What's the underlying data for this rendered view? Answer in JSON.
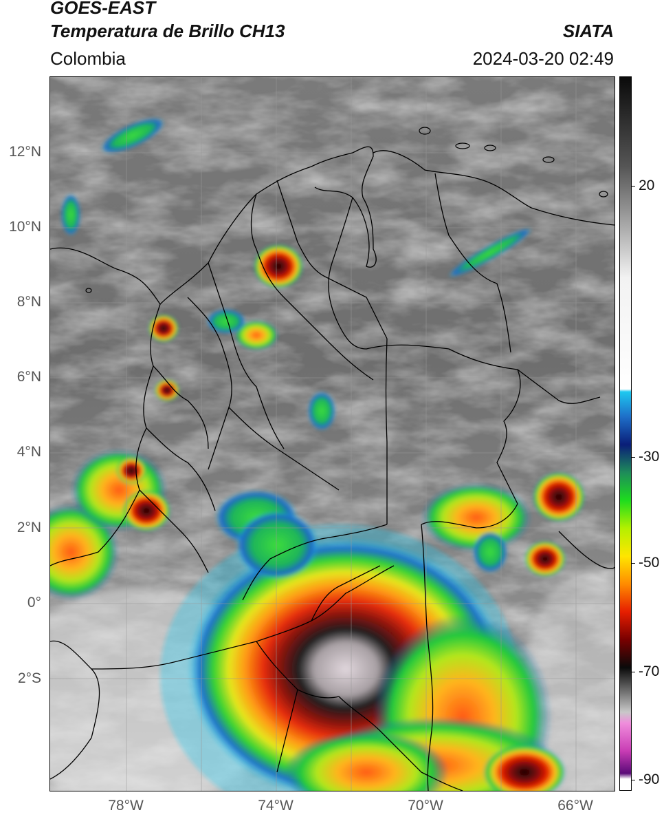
{
  "header": {
    "line1": "GOES-EAST",
    "line2": "Temperatura de Brillo CH13",
    "line3": "Colombia",
    "source": "SIATA",
    "datetime": "2024-03-20 02:49"
  },
  "map": {
    "lat_labels": [
      "12°N",
      "10°N",
      "8°N",
      "6°N",
      "4°N",
      "2°N",
      "0°",
      "2°S"
    ],
    "lon_labels": [
      "78°W",
      "74°W",
      "70°W",
      "66°W"
    ],
    "lon_range": [
      -80,
      -65
    ],
    "lat_range": [
      -5,
      14
    ]
  },
  "colorbar": {
    "labels": [
      "20",
      "-30",
      "-50",
      "-70",
      "-90"
    ],
    "range": [
      -92,
      36
    ],
    "gradient": [
      {
        "v": 36,
        "c": "#0a0a0a"
      },
      {
        "v": 20,
        "c": "#555555"
      },
      {
        "v": 0,
        "c": "#f2f2f2"
      },
      {
        "v": -20,
        "c": "#ffffff"
      },
      {
        "v": -20.5,
        "c": "#1ec8f0"
      },
      {
        "v": -25,
        "c": "#1e6ec8"
      },
      {
        "v": -30,
        "c": "#0a1e78"
      },
      {
        "v": -35,
        "c": "#1e8c5a"
      },
      {
        "v": -40,
        "c": "#1edc1e"
      },
      {
        "v": -45,
        "c": "#b4f000"
      },
      {
        "v": -50,
        "c": "#ffe600"
      },
      {
        "v": -55,
        "c": "#ff8c00"
      },
      {
        "v": -60,
        "c": "#e61e00"
      },
      {
        "v": -65,
        "c": "#780000"
      },
      {
        "v": -70,
        "c": "#0a0a0a"
      },
      {
        "v": -78,
        "c": "#c8c8c8"
      },
      {
        "v": -80,
        "c": "#f08cdc"
      },
      {
        "v": -85,
        "c": "#c83cb4"
      },
      {
        "v": -89,
        "c": "#5a0a78"
      },
      {
        "v": -90,
        "c": "#ffffff"
      }
    ]
  }
}
